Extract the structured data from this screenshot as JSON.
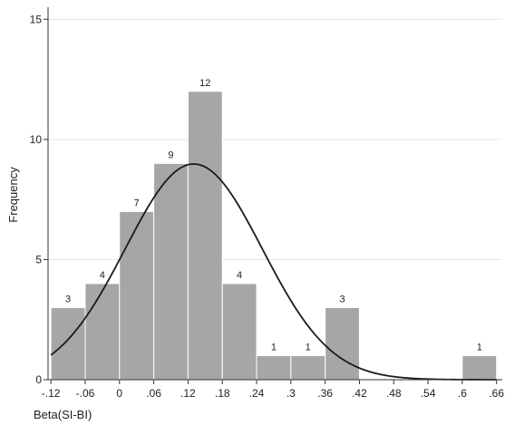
{
  "chart_data": {
    "type": "bar",
    "subtype": "histogram",
    "xlabel": "Beta(SI-BI)",
    "ylabel": "Frequency",
    "bin_width": 0.06,
    "bins": [
      {
        "start": -0.12,
        "end": -0.06,
        "count": 3
      },
      {
        "start": -0.06,
        "end": 0.0,
        "count": 4
      },
      {
        "start": 0.0,
        "end": 0.06,
        "count": 7
      },
      {
        "start": 0.06,
        "end": 0.12,
        "count": 9
      },
      {
        "start": 0.12,
        "end": 0.18,
        "count": 12
      },
      {
        "start": 0.18,
        "end": 0.24,
        "count": 4
      },
      {
        "start": 0.24,
        "end": 0.3,
        "count": 1
      },
      {
        "start": 0.3,
        "end": 0.36,
        "count": 1
      },
      {
        "start": 0.36,
        "end": 0.42,
        "count": 3
      },
      {
        "start": 0.42,
        "end": 0.48,
        "count": 0
      },
      {
        "start": 0.48,
        "end": 0.54,
        "count": 0
      },
      {
        "start": 0.54,
        "end": 0.6,
        "count": 0
      },
      {
        "start": 0.6,
        "end": 0.66,
        "count": 1
      }
    ],
    "x_ticks": [
      -0.12,
      -0.06,
      0,
      0.06,
      0.12,
      0.18,
      0.24,
      0.3,
      0.36,
      0.42,
      0.48,
      0.54,
      0.6,
      0.66
    ],
    "x_tick_labels": [
      "-.12",
      "-.06",
      "0",
      ".06",
      ".12",
      ".18",
      ".24",
      ".3",
      ".36",
      ".42",
      ".48",
      ".54",
      ".6",
      ".66"
    ],
    "y_ticks": [
      0,
      5,
      10,
      15
    ],
    "y_tick_labels": [
      "0",
      "5",
      "10",
      "15"
    ],
    "xlim": [
      -0.125,
      0.67
    ],
    "ylim": [
      0,
      15.5
    ],
    "grid": "horizontal",
    "normal_curve": {
      "mean": 0.13,
      "sd": 0.12,
      "n": 45
    },
    "colors": {
      "bar_fill": "#a6a6a6",
      "bar_stroke": "#ffffff",
      "curve": "#1a1a1a",
      "grid": "#e6e6e6",
      "axis": "#333333"
    }
  }
}
